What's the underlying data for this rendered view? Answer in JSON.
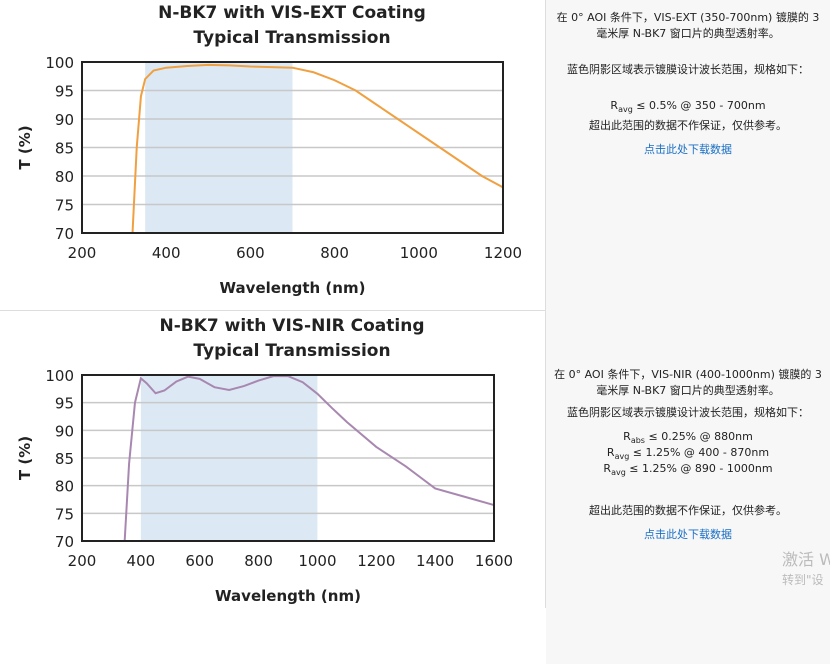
{
  "chart_data": [
    {
      "type": "line",
      "title": [
        "N-BK7 with VIS-EXT Coating",
        "Typical Transmission"
      ],
      "xlabel": "Wavelength (nm)",
      "ylabel": "T (%)",
      "xlim": [
        200,
        1200
      ],
      "ylim": [
        70,
        100
      ],
      "xticks": [
        200,
        400,
        600,
        800,
        1000,
        1200
      ],
      "yticks": [
        70,
        75,
        80,
        85,
        90,
        95,
        100
      ],
      "shaded_range": [
        350,
        700
      ],
      "grid": "horizontal",
      "color": "#f0a040",
      "shade_color": "#dce9f5",
      "x": [
        320,
        330,
        340,
        350,
        370,
        400,
        450,
        500,
        550,
        600,
        650,
        700,
        750,
        800,
        850,
        900,
        950,
        1000,
        1050,
        1100,
        1150,
        1200
      ],
      "y": [
        70,
        85,
        94,
        97,
        98.5,
        99,
        99.3,
        99.5,
        99.4,
        99.2,
        99.1,
        99,
        98.2,
        96.8,
        95,
        92.5,
        90,
        87.5,
        85,
        82.5,
        80,
        78
      ]
    },
    {
      "type": "line",
      "title": [
        "N-BK7 with VIS-NIR Coating",
        "Typical Transmission"
      ],
      "xlabel": "Wavelength (nm)",
      "ylabel": "T (%)",
      "xlim": [
        200,
        1600
      ],
      "ylim": [
        70,
        100
      ],
      "xticks": [
        200,
        400,
        600,
        800,
        1000,
        1200,
        1400,
        1600
      ],
      "yticks": [
        70,
        75,
        80,
        85,
        90,
        95,
        100
      ],
      "shaded_range": [
        400,
        1000
      ],
      "grid": "horizontal",
      "color": "#a888b0",
      "shade_color": "#dce9f5",
      "x": [
        345,
        360,
        380,
        400,
        420,
        450,
        480,
        520,
        560,
        600,
        650,
        700,
        750,
        800,
        850,
        900,
        950,
        1000,
        1050,
        1100,
        1200,
        1300,
        1350,
        1400,
        1500,
        1600
      ],
      "y": [
        70,
        84,
        95,
        99.4,
        98.5,
        96.7,
        97.2,
        98.8,
        99.7,
        99.3,
        97.8,
        97.3,
        98,
        99,
        99.8,
        99.8,
        98.7,
        96.6,
        94,
        91.5,
        87,
        83.5,
        81.5,
        79.5,
        78,
        76.5
      ]
    }
  ],
  "panels": [
    {
      "desc1": "在 0° AOI 条件下，VIS-EXT (350-700nm) 镀膜的 3 毫米厚 N-BK7 窗口片的典型透射率。",
      "desc2": "蓝色阴影区域表示镀膜设计波长范围，规格如下：",
      "specs": [
        {
          "r": "R",
          "sub": "avg",
          "text": " ≤ 0.5% @ 350 - 700nm"
        }
      ],
      "note": "超出此范围的数据不作保证，仅供参考。",
      "link": "点击此处下载数据"
    },
    {
      "desc1": "在 0° AOI 条件下，VIS-NIR (400-1000nm) 镀膜的 3 毫米厚 N-BK7 窗口片的典型透射率。",
      "desc2": "蓝色阴影区域表示镀膜设计波长范围，规格如下：",
      "specs": [
        {
          "r": "R",
          "sub": "abs",
          "text": " ≤ 0.25% @ 880nm"
        },
        {
          "r": "R",
          "sub": "avg",
          "text": " ≤ 1.25% @ 400 - 870nm"
        },
        {
          "r": "R",
          "sub": "avg",
          "text": " ≤ 1.25% @ 890 - 1000nm"
        }
      ],
      "note": "超出此范围的数据不作保证，仅供参考。",
      "link": "点击此处下载数据"
    }
  ],
  "watermark": {
    "line1": "激活 W",
    "line2": "转到\"设"
  }
}
